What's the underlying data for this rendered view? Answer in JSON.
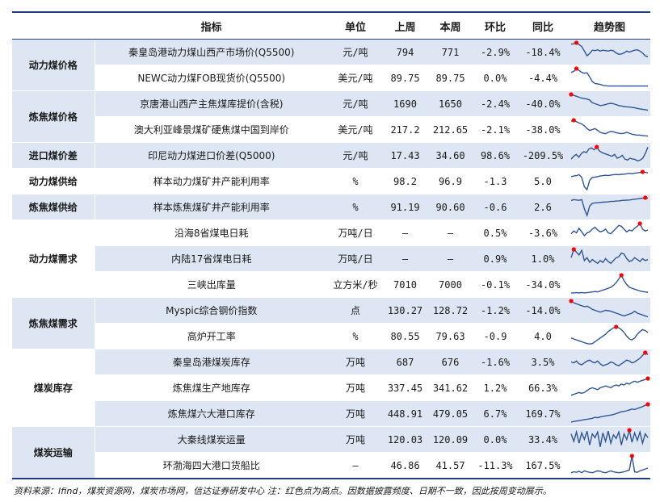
{
  "header": {
    "category": "",
    "indicator": "指标",
    "unit": "单位",
    "last_week": "上周",
    "this_week": "本周",
    "wow": "环比",
    "yoy": "同比",
    "trend": "趋势图"
  },
  "rows": [
    {
      "indicator": "秦皇岛港动力煤山西产市场价(Q5500)",
      "unit": "元/吨",
      "last_week": "794",
      "this_week": "771",
      "wow": "-2.9%",
      "yoy": "-18.4%",
      "trend": [
        0.92,
        0.95,
        1.0,
        0.9,
        0.8,
        0.55,
        0.3,
        0.42,
        0.6,
        0.58,
        0.62,
        0.55,
        0.6,
        0.58,
        0.55,
        0.6,
        0.57,
        0.45,
        0.38,
        0.4,
        0.45,
        0.55,
        0.5,
        0.55,
        0.6,
        0.62,
        0.55,
        0.45,
        0.3,
        0.25
      ]
    },
    {
      "indicator": "NEWC动力煤FOB现货价(Q5500)",
      "unit": "美元/吨",
      "last_week": "89.75",
      "this_week": "89.75",
      "wow": "0.0%",
      "yoy": "-4.4%",
      "trend": [
        0.8,
        0.85,
        1.0,
        0.9,
        0.8,
        0.75,
        0.78,
        0.55,
        0.3,
        0.2,
        0.18,
        0.15,
        0.1,
        0.08,
        0.06,
        0.06,
        0.06,
        0.06,
        0.06,
        0.06,
        0.06,
        0.06,
        0.06,
        0.06,
        0.06,
        0.06,
        0.06,
        0.06,
        0.06,
        0.06
      ]
    },
    {
      "indicator": "京唐港山西产主焦煤库提价(含税)",
      "unit": "元/吨",
      "last_week": "1690",
      "this_week": "1650",
      "wow": "-2.4%",
      "yoy": "-40.0%",
      "trend": [
        1.0,
        0.95,
        0.9,
        0.85,
        0.8,
        0.78,
        0.75,
        0.7,
        0.55,
        0.5,
        0.45,
        0.4,
        0.42,
        0.45,
        0.5,
        0.52,
        0.5,
        0.45,
        0.4,
        0.38,
        0.35,
        0.33,
        0.32,
        0.3,
        0.28,
        0.25,
        0.22,
        0.2,
        0.18,
        0.15
      ]
    },
    {
      "indicator": "澳大利亚峰景煤矿硬焦煤中国到岸价",
      "unit": "美元/吨",
      "last_week": "217.2",
      "this_week": "212.65",
      "wow": "-2.1%",
      "yoy": "-38.0%",
      "trend": [
        0.95,
        1.0,
        0.92,
        0.85,
        0.8,
        0.7,
        0.55,
        0.45,
        0.5,
        0.55,
        0.45,
        0.35,
        0.3,
        0.28,
        0.35,
        0.4,
        0.38,
        0.33,
        0.3,
        0.28,
        0.3,
        0.35,
        0.3,
        0.25,
        0.22,
        0.2,
        0.2,
        0.18,
        0.16,
        0.15
      ]
    },
    {
      "indicator": "印尼动力煤进口价差(Q5000)",
      "unit": "元/吨",
      "last_week": "17.43",
      "this_week": "34.60",
      "wow": "98.6%",
      "yoy": "-209.5%",
      "trend": [
        0.3,
        0.45,
        0.55,
        0.4,
        0.6,
        0.7,
        0.65,
        0.85,
        0.9,
        0.8,
        0.95,
        0.75,
        0.65,
        0.6,
        0.55,
        0.5,
        0.45,
        0.55,
        0.35,
        0.4,
        0.5,
        0.3,
        0.25,
        0.35,
        0.3,
        0.28,
        0.2,
        0.25,
        0.35,
        0.6,
        0.95
      ]
    },
    {
      "indicator": "样本动力煤矿井产能利用率",
      "unit": "%",
      "last_week": "98.2",
      "this_week": "96.9",
      "wow": "-1.3",
      "yoy": "5.0",
      "trend": [
        0.75,
        0.78,
        0.8,
        0.85,
        0.7,
        0.2,
        0.05,
        0.55,
        0.7,
        0.72,
        0.75,
        0.78,
        0.8,
        0.82,
        0.8,
        0.83,
        0.85,
        0.86,
        0.85,
        0.87,
        0.88,
        0.9,
        0.92,
        0.9,
        0.93,
        0.95,
        0.97,
        1.0,
        0.98,
        0.95
      ]
    },
    {
      "indicator": "样本炼焦煤矿井产能利用率",
      "unit": "%",
      "last_week": "91.19",
      "this_week": "90.60",
      "wow": "-0.6",
      "yoy": "2.6",
      "trend": [
        0.85,
        0.9,
        0.88,
        0.86,
        0.9,
        0.4,
        0.05,
        0.55,
        0.7,
        0.72,
        0.73,
        0.75,
        0.76,
        0.77,
        0.78,
        0.8,
        0.8,
        0.82,
        0.83,
        0.85,
        0.86,
        0.87,
        0.88,
        0.9,
        0.92,
        0.94,
        0.96,
        0.98,
        1.0,
        0.98
      ]
    },
    {
      "indicator": "沿海8省煤电日耗",
      "unit": "万吨/日",
      "last_week": "–",
      "this_week": "–",
      "wow": "0.5%",
      "yoy": "-3.6%",
      "trend": [
        0.45,
        0.6,
        0.5,
        0.75,
        0.55,
        0.35,
        0.5,
        0.55,
        0.7,
        0.8,
        0.65,
        0.55,
        0.6,
        0.7,
        0.5,
        0.45,
        0.6,
        0.75,
        0.9,
        0.85,
        0.7,
        0.55,
        0.65,
        0.6,
        0.75,
        0.85,
        1.0,
        0.7,
        0.6,
        0.65
      ]
    },
    {
      "indicator": "内陆17省煤电日耗",
      "unit": "万吨/日",
      "last_week": "–",
      "this_week": "–",
      "wow": "0.9%",
      "yoy": "1.0%",
      "trend": [
        0.55,
        1.0,
        0.85,
        0.7,
        0.95,
        0.4,
        0.55,
        0.3,
        0.45,
        0.35,
        0.25,
        0.4,
        0.3,
        0.5,
        0.35,
        0.25,
        0.4,
        0.55,
        0.6,
        0.8,
        0.75,
        0.5,
        0.35,
        0.4,
        0.55,
        0.45,
        0.35,
        0.5,
        0.4,
        0.45
      ]
    },
    {
      "indicator": "三峡出库量",
      "unit": "立方米/秒",
      "last_week": "7010",
      "this_week": "7000",
      "wow": "-0.1%",
      "yoy": "-34.0%",
      "trend": [
        0.05,
        0.05,
        0.06,
        0.05,
        0.07,
        0.05,
        0.06,
        0.08,
        0.1,
        0.12,
        0.1,
        0.15,
        0.2,
        0.25,
        0.3,
        0.35,
        0.45,
        0.6,
        0.8,
        1.0,
        0.7,
        0.5,
        0.35,
        0.3,
        0.25,
        0.2,
        0.15,
        0.12,
        0.1,
        0.08
      ]
    },
    {
      "indicator": "Myspic综合钢价指数",
      "unit": "点",
      "last_week": "130.27",
      "this_week": "128.72",
      "wow": "-1.2%",
      "yoy": "-14.0%",
      "trend": [
        1.0,
        0.9,
        0.85,
        0.8,
        0.75,
        0.7,
        0.72,
        0.65,
        0.55,
        0.5,
        0.45,
        0.4,
        0.45,
        0.5,
        0.48,
        0.45,
        0.4,
        0.35,
        0.3,
        0.25,
        0.2,
        0.25,
        0.3,
        0.35,
        0.45,
        0.35,
        0.3,
        0.25,
        0.2,
        0.15
      ]
    },
    {
      "indicator": "高炉开工率",
      "unit": "%",
      "last_week": "80.55",
      "this_week": "79.63",
      "wow": "-0.9",
      "yoy": "4.0",
      "trend": [
        0.4,
        0.35,
        0.3,
        0.25,
        0.2,
        0.15,
        0.1,
        0.08,
        0.1,
        0.2,
        0.3,
        0.4,
        0.5,
        0.6,
        0.75,
        0.85,
        0.95,
        1.0,
        0.95,
        0.85,
        0.7,
        0.5,
        0.35,
        0.3,
        0.4,
        0.6,
        0.75,
        0.85,
        0.8,
        0.7
      ]
    },
    {
      "indicator": "秦皇岛港煤炭库存",
      "unit": "万吨",
      "last_week": "687",
      "this_week": "676",
      "wow": "-1.6%",
      "yoy": "3.5%",
      "trend": [
        0.5,
        0.45,
        0.55,
        0.4,
        0.35,
        0.45,
        0.55,
        0.6,
        0.5,
        0.45,
        0.55,
        0.4,
        0.3,
        0.35,
        0.4,
        0.5,
        0.45,
        0.35,
        0.3,
        0.4,
        0.5,
        0.6,
        0.55,
        0.45,
        0.5,
        0.6,
        0.7,
        0.85,
        1.0,
        0.9
      ]
    },
    {
      "indicator": "炼焦煤生产地库存",
      "unit": "万吨",
      "last_week": "337.45",
      "this_week": "341.62",
      "wow": "1.2%",
      "yoy": "66.3%",
      "trend": [
        0.1,
        0.15,
        0.2,
        0.25,
        0.2,
        0.25,
        0.35,
        0.45,
        0.5,
        0.45,
        0.4,
        0.5,
        0.55,
        0.6,
        0.55,
        0.5,
        0.6,
        0.65,
        0.6,
        0.7,
        0.65,
        0.75,
        0.7,
        0.8,
        0.85,
        0.8,
        0.85,
        0.9,
        0.95,
        1.0
      ]
    },
    {
      "indicator": "炼焦煤六大港口库存",
      "unit": "万吨",
      "last_week": "448.91",
      "this_week": "479.05",
      "wow": "6.7%",
      "yoy": "169.7%",
      "trend": [
        0.05,
        0.08,
        0.1,
        0.12,
        0.15,
        0.18,
        0.2,
        0.22,
        0.25,
        0.3,
        0.28,
        0.32,
        0.35,
        0.38,
        0.4,
        0.42,
        0.45,
        0.5,
        0.55,
        0.6,
        0.62,
        0.65,
        0.7,
        0.75,
        0.72,
        0.78,
        0.82,
        0.88,
        0.95,
        1.0
      ]
    },
    {
      "indicator": "大秦线煤炭运量",
      "unit": "万吨",
      "last_week": "120.03",
      "this_week": "120.09",
      "wow": "0.0%",
      "yoy": "33.4%",
      "trend": [
        0.8,
        0.4,
        0.9,
        0.3,
        0.85,
        0.5,
        0.95,
        0.2,
        0.8,
        0.6,
        0.9,
        0.1,
        0.85,
        0.4,
        0.95,
        0.3,
        0.75,
        0.55,
        0.9,
        0.2,
        0.8,
        0.5,
        1.0,
        0.35,
        0.85,
        0.45,
        0.9,
        0.3,
        0.8,
        0.6
      ]
    },
    {
      "indicator": "环渤海四大港口货船比",
      "unit": "–",
      "last_week": "46.86",
      "this_week": "41.57",
      "wow": "-11.3%",
      "yoy": "167.5%",
      "trend": [
        0.1,
        0.15,
        0.12,
        0.18,
        0.1,
        0.2,
        0.15,
        0.12,
        0.1,
        0.15,
        0.2,
        0.18,
        0.12,
        0.1,
        0.15,
        0.2,
        0.15,
        0.12,
        0.1,
        0.12,
        0.15,
        0.2,
        0.25,
        1.0,
        0.15,
        0.12,
        0.2,
        0.25,
        0.3,
        0.35
      ]
    }
  ],
  "categories": [
    "动力煤价格",
    "炼焦煤价格",
    "进口煤价差",
    "动力煤供给",
    "炼焦煤供给",
    "动力煤需求",
    "炼焦煤需求",
    "煤炭库存",
    "煤炭运输"
  ],
  "colors": {
    "header_line": "#1f3f78",
    "shade": "#dde6f2",
    "trend_line": "#2f5597",
    "peak_dot": "#ff0000"
  },
  "footnote": "资料来源：Ifind，煤炭资源网，煤炭市场网，信达证券研发中心      注：红色点为高点。因数据披露频度、日期不一致，因此按周变动展示。"
}
